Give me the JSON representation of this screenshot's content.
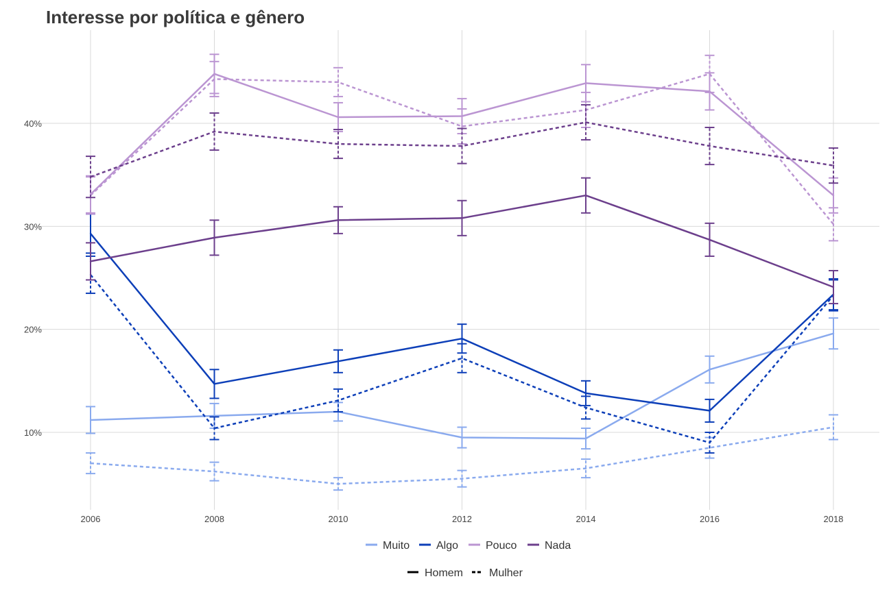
{
  "chart_data": {
    "type": "line",
    "title": "Interesse por política e gênero",
    "xlabel": "",
    "ylabel": "",
    "x": [
      2006,
      2008,
      2010,
      2012,
      2014,
      2016,
      2018
    ],
    "x_tick_labels": [
      "2006",
      "2008",
      "2010",
      "2012",
      "2014",
      "2016",
      "2018"
    ],
    "y_ticks": [
      10,
      20,
      30,
      40
    ],
    "y_tick_labels": [
      "10%",
      "20%",
      "30%",
      "40%"
    ],
    "ylim": [
      3,
      48
    ],
    "xlim": [
      2005.6,
      2018.7
    ],
    "grid": true,
    "error_bars": true,
    "color_legend": [
      {
        "name": "Muito",
        "color": "#8aaaee"
      },
      {
        "name": "Algo",
        "color": "#0d3fb8"
      },
      {
        "name": "Pouco",
        "color": "#bb95d2"
      },
      {
        "name": "Nada",
        "color": "#6c3f8c"
      }
    ],
    "linetype_legend": [
      {
        "name": "Homem",
        "dash": "solid"
      },
      {
        "name": "Mulher",
        "dash": "dashed"
      }
    ],
    "series": [
      {
        "name": "Muito - Homem",
        "level": "Muito",
        "gender": "Homem",
        "color": "#8aaaee",
        "dashed": false,
        "values": [
          11.2,
          11.6,
          12.0,
          9.5,
          9.4,
          16.1,
          19.6
        ],
        "err": [
          1.3,
          1.2,
          0.9,
          1.0,
          1.0,
          1.3,
          1.5
        ]
      },
      {
        "name": "Muito - Mulher",
        "level": "Muito",
        "gender": "Mulher",
        "color": "#8aaaee",
        "dashed": false,
        "values": [
          7.0,
          6.2,
          5.0,
          5.5,
          6.5,
          8.5,
          10.5
        ],
        "err": [
          1.0,
          0.9,
          0.6,
          0.8,
          0.9,
          1.0,
          1.2
        ],
        "dashed_override": true
      },
      {
        "name": "Algo - Homem",
        "level": "Algo",
        "gender": "Homem",
        "color": "#0d3fb8",
        "dashed": false,
        "values": [
          29.3,
          14.7,
          16.9,
          19.1,
          13.8,
          12.1,
          23.4
        ],
        "err": [
          1.9,
          1.4,
          1.1,
          1.4,
          1.2,
          1.1,
          1.5
        ]
      },
      {
        "name": "Algo - Mulher",
        "level": "Algo",
        "gender": "Mulher",
        "color": "#0d3fb8",
        "dashed": true,
        "values": [
          25.3,
          10.4,
          13.1,
          17.2,
          12.4,
          9.0,
          23.3
        ],
        "err": [
          1.8,
          1.1,
          1.1,
          1.4,
          1.1,
          1.0,
          1.5
        ]
      },
      {
        "name": "Pouco - Homem",
        "level": "Pouco",
        "gender": "Homem",
        "color": "#bb95d2",
        "dashed": false,
        "values": [
          33.1,
          44.8,
          40.6,
          40.7,
          43.9,
          43.1,
          33.0
        ],
        "err": [
          1.8,
          1.9,
          1.4,
          1.7,
          1.8,
          1.8,
          1.7
        ]
      },
      {
        "name": "Pouco - Mulher",
        "level": "Pouco",
        "gender": "Mulher",
        "color": "#bb95d2",
        "dashed": true,
        "values": [
          33.0,
          44.3,
          44.0,
          39.7,
          41.3,
          44.8,
          30.2
        ],
        "err": [
          1.8,
          1.7,
          1.4,
          1.7,
          1.7,
          1.8,
          1.6
        ]
      },
      {
        "name": "Nada - Homem",
        "level": "Nada",
        "gender": "Homem",
        "color": "#6c3f8c",
        "dashed": false,
        "values": [
          26.6,
          28.9,
          30.6,
          30.8,
          33.0,
          28.7,
          24.1
        ],
        "err": [
          1.8,
          1.7,
          1.3,
          1.7,
          1.7,
          1.6,
          1.6
        ]
      },
      {
        "name": "Nada - Mulher",
        "level": "Nada",
        "gender": "Mulher",
        "color": "#6c3f8c",
        "dashed": true,
        "values": [
          34.8,
          39.2,
          38.0,
          37.8,
          40.1,
          37.8,
          35.9
        ],
        "err": [
          2.0,
          1.8,
          1.4,
          1.7,
          1.7,
          1.8,
          1.7
        ]
      }
    ]
  }
}
